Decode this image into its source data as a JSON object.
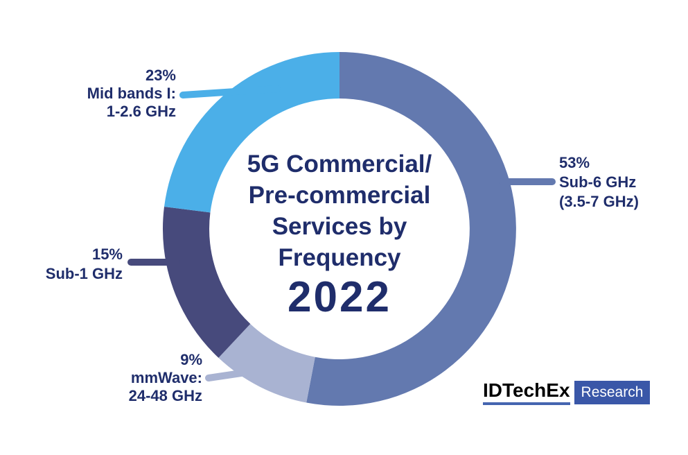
{
  "background": "#ffffff",
  "text_color": "#1F2D6B",
  "chart_data": {
    "type": "pie",
    "variant": "donut",
    "title_lines": [
      "5G Commercial/",
      "Pre-commercial",
      "Services by",
      "Frequency"
    ],
    "year": "2022",
    "start_angle_deg": 0,
    "direction": "clockwise",
    "legend_position": "callout-labels",
    "segments": [
      {
        "name": "sub-6-ghz",
        "pct": 53,
        "color": "#6379AF",
        "label_lines": [
          "53%",
          "Sub-6 GHz",
          "(3.5-7 GHz)"
        ]
      },
      {
        "name": "mmwave",
        "pct": 9,
        "color": "#A9B3D2",
        "label_lines": [
          "9%",
          "mmWave:",
          "24-48 GHz"
        ]
      },
      {
        "name": "sub-1-ghz",
        "pct": 15,
        "color": "#474A7C",
        "label_lines": [
          "15%",
          "Sub-1 GHz"
        ]
      },
      {
        "name": "mid-bands-i",
        "pct": 23,
        "color": "#4BAFE8",
        "label_lines": [
          "23%",
          "Mid bands I:",
          "1-2.6 GHz"
        ]
      }
    ]
  },
  "logo": {
    "brand": "IDTechEx",
    "suffix": "Research",
    "brand_color": "#000000",
    "underline_color": "#4565B0",
    "box_color": "#3A57A8",
    "suffix_text_color": "#ffffff"
  }
}
